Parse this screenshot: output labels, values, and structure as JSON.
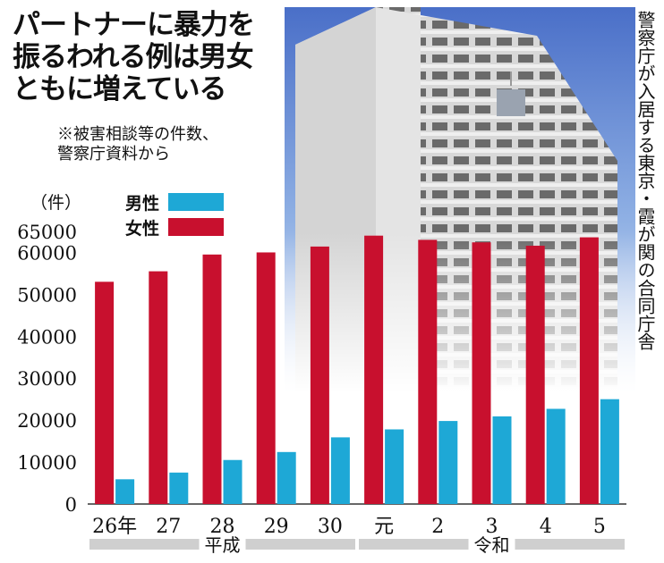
{
  "title_lines": [
    "パートナーに暴力を",
    "振るわれる例は男女",
    "ともに増えている"
  ],
  "note_lines": [
    "※被害相談等の件数、",
    "警察庁資料から"
  ],
  "photo_caption": "警察庁が入居する東京・霞が関の合同庁舎",
  "colors": {
    "male": "#1ea8d6",
    "female": "#c8102e",
    "era_band": "#cfcfcf"
  },
  "chart_data": {
    "type": "bar",
    "ylabel": "（件）",
    "ylim": [
      0,
      65000
    ],
    "yticks": [
      0,
      10000,
      20000,
      30000,
      40000,
      50000,
      60000,
      65000
    ],
    "categories": [
      "26年",
      "27",
      "28",
      "29",
      "30",
      "元",
      "2",
      "3",
      "4",
      "5"
    ],
    "series": [
      {
        "name": "男性",
        "values": [
          5900,
          7500,
          10500,
          12400,
          15900,
          17800,
          19800,
          20900,
          22700,
          25000
        ]
      },
      {
        "name": "女性",
        "values": [
          53000,
          55500,
          59500,
          60000,
          61400,
          64000,
          63000,
          62400,
          61600,
          63600
        ]
      }
    ],
    "era_groups": [
      {
        "label": "平成",
        "from": 0,
        "to": 4
      },
      {
        "label": "令和",
        "from": 5,
        "to": 9
      }
    ]
  }
}
